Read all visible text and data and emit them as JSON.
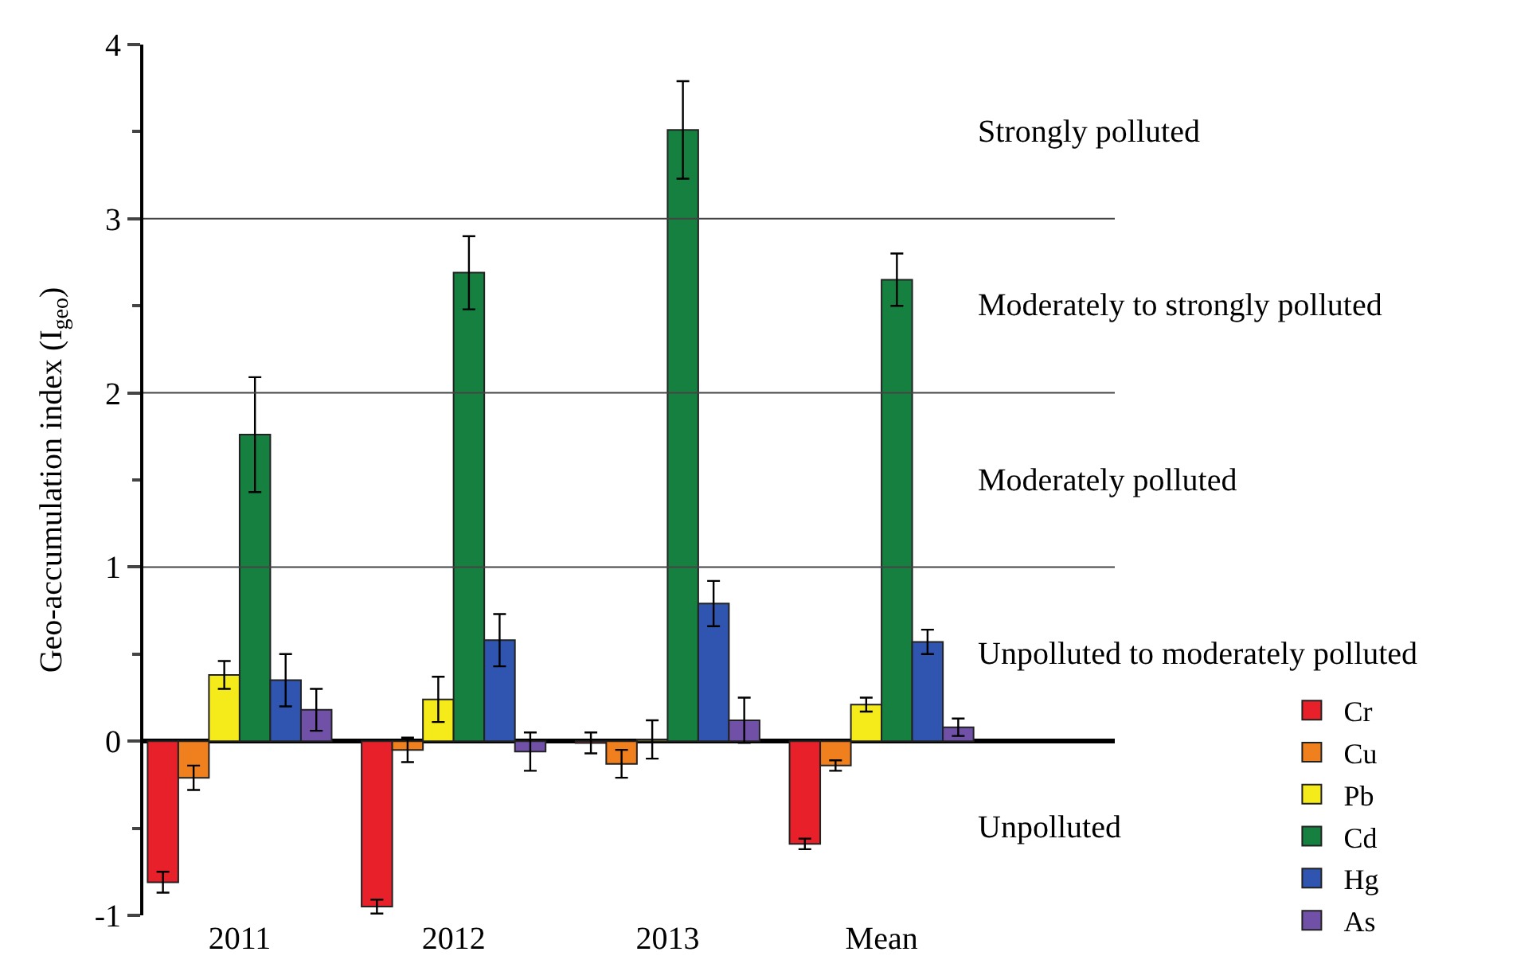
{
  "chart_data": {
    "type": "bar",
    "ylabel": "Geo-accumulation index (I$_{geo}$)",
    "categories": [
      "2011",
      "2012",
      "2013",
      "Mean"
    ],
    "series": [
      {
        "name": "Cr",
        "color": "#e8202a",
        "values": [
          -0.81,
          -0.95,
          -0.01,
          -0.59
        ],
        "errors": [
          0.06,
          0.04,
          0.06,
          0.03
        ]
      },
      {
        "name": "Cu",
        "color": "#f07f1e",
        "values": [
          -0.21,
          -0.05,
          -0.13,
          -0.14
        ],
        "errors": [
          0.07,
          0.07,
          0.08,
          0.03
        ]
      },
      {
        "name": "Pb",
        "color": "#f5eb1a",
        "values": [
          0.38,
          0.24,
          0.01,
          0.21
        ],
        "errors": [
          0.08,
          0.13,
          0.11,
          0.04
        ]
      },
      {
        "name": "Cd",
        "color": "#168040",
        "values": [
          1.76,
          2.69,
          3.51,
          2.65
        ],
        "errors": [
          0.33,
          0.21,
          0.28,
          0.15
        ]
      },
      {
        "name": "Hg",
        "color": "#2f55b0",
        "values": [
          0.35,
          0.58,
          0.79,
          0.57
        ],
        "errors": [
          0.15,
          0.15,
          0.13,
          0.07
        ]
      },
      {
        "name": "As",
        "color": "#7150a8",
        "values": [
          0.18,
          -0.06,
          0.12,
          0.08
        ],
        "errors": [
          0.12,
          0.11,
          0.13,
          0.05
        ]
      }
    ],
    "ylim": [
      -1,
      4
    ],
    "yticks": [
      -1,
      0,
      1,
      2,
      3,
      4
    ],
    "ref_lines": [
      {
        "axis": "y",
        "value": 1
      },
      {
        "axis": "y",
        "value": 2
      },
      {
        "axis": "y",
        "value": 3
      }
    ],
    "annotations": [
      "Strongly polluted",
      "Moderately to strongly polluted",
      "Moderately polluted",
      "Unpolluted to moderately polluted",
      "Unpolluted"
    ],
    "legend": "bottom right"
  }
}
